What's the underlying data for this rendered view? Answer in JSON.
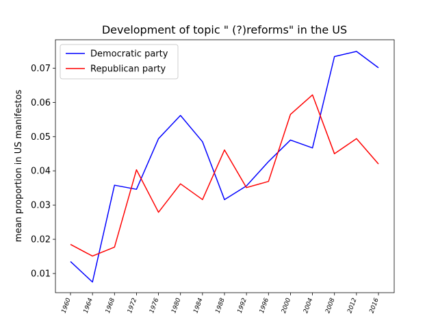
{
  "chart_data": {
    "type": "line",
    "title": "Development of topic \" (?)reforms\" in the US",
    "xlabel": "",
    "ylabel": "mean proportion in US manifestos",
    "categories": [
      "1960",
      "1964",
      "1968",
      "1972",
      "1976",
      "1980",
      "1984",
      "1988",
      "1992",
      "1996",
      "2000",
      "2004",
      "2008",
      "2012",
      "2016"
    ],
    "ylim": [
      0.0044,
      0.0783
    ],
    "yticks": [
      "0.01",
      "0.02",
      "0.03",
      "0.04",
      "0.05",
      "0.06",
      "0.07"
    ],
    "grid": false,
    "legend_position": "upper-left",
    "series": [
      {
        "name": "Democratic party",
        "color": "#0000ff",
        "values": [
          0.0135,
          0.0075,
          0.0358,
          0.0346,
          0.0494,
          0.0562,
          0.0485,
          0.0316,
          0.0356,
          0.0427,
          0.049,
          0.0467,
          0.0734,
          0.0749,
          0.0701
        ]
      },
      {
        "name": "Republican party",
        "color": "#ff0000",
        "values": [
          0.0185,
          0.0151,
          0.0177,
          0.0403,
          0.0279,
          0.0362,
          0.0316,
          0.0461,
          0.0351,
          0.0369,
          0.0565,
          0.0622,
          0.045,
          0.0494,
          0.042
        ]
      }
    ]
  }
}
